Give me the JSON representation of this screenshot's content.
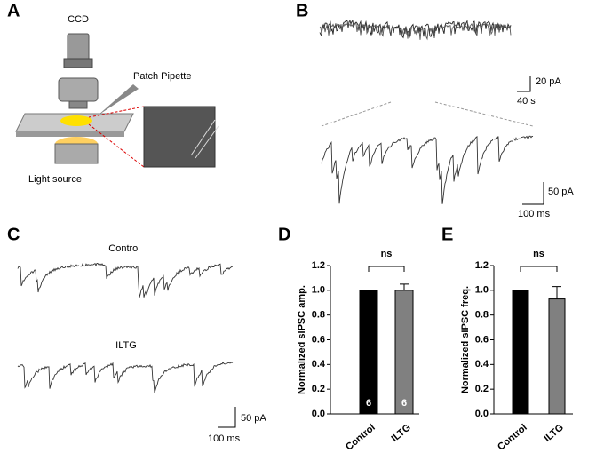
{
  "panels": {
    "A": {
      "label": "A",
      "camera": "CCD",
      "pipette": "Patch Pipette",
      "light": "Light source"
    },
    "B": {
      "label": "B",
      "scale_top": [
        "20 pA",
        "40 s"
      ],
      "scale_bottom": [
        "50 pA",
        "100 ms"
      ]
    },
    "C": {
      "label": "C",
      "traces": [
        "Control",
        "ILTG"
      ],
      "scale": [
        "50 pA",
        "100 ms"
      ]
    }
  },
  "chart_data": [
    {
      "type": "bar",
      "panel": "D",
      "ylabel": "Normalized sIPSC amp.",
      "annotation": "ns",
      "categories": [
        "Control",
        "ILTG"
      ],
      "values": [
        1.0,
        1.0
      ],
      "errors": [
        0,
        0.05
      ],
      "colors": [
        "#000000",
        "#808080"
      ],
      "n_labels": [
        "6",
        "6"
      ],
      "ylim": [
        0,
        1.2
      ],
      "yticks": [
        {
          "value": 0,
          "label": "0.0"
        },
        {
          "value": 0.2,
          "label": "0.2"
        },
        {
          "value": 0.4,
          "label": "0.4"
        },
        {
          "value": 0.6,
          "label": "0.6"
        },
        {
          "value": 0.8,
          "label": "0.8"
        },
        {
          "value": 1.0,
          "label": "1.0"
        },
        {
          "value": 1.2,
          "label": "1.2"
        }
      ]
    },
    {
      "type": "bar",
      "panel": "E",
      "ylabel": "Normalized sIPSC freq.",
      "annotation": "ns",
      "categories": [
        "Control",
        "ILTG"
      ],
      "values": [
        1.0,
        0.93
      ],
      "errors": [
        0,
        0.1
      ],
      "colors": [
        "#000000",
        "#808080"
      ],
      "ylim": [
        0,
        1.2
      ],
      "yticks": [
        {
          "value": 0,
          "label": "0.0"
        },
        {
          "value": 0.2,
          "label": "0.2"
        },
        {
          "value": 0.4,
          "label": "0.4"
        },
        {
          "value": 0.6,
          "label": "0.6"
        },
        {
          "value": 0.8,
          "label": "0.8"
        },
        {
          "value": 1.0,
          "label": "1.0"
        },
        {
          "value": 1.2,
          "label": "1.2"
        }
      ]
    }
  ]
}
